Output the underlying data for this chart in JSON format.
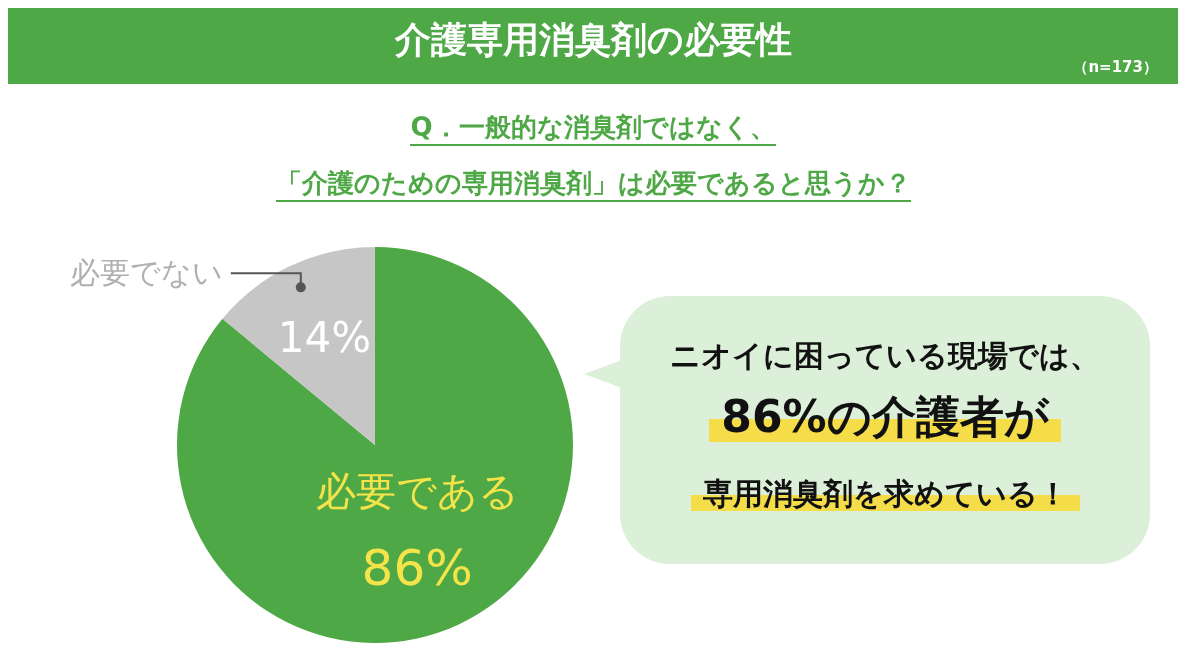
{
  "chart_data": {
    "type": "pie",
    "title": "介護専用消臭剤の必要性",
    "subtitle": "Q．一般的な消臭剤ではなく、「介護のための専用消臭剤」は必要であると思うか？",
    "categories": [
      "必要である",
      "必要でない"
    ],
    "values": [
      86,
      14
    ],
    "colors": [
      "#4ea846",
      "#c6c6c6"
    ],
    "value_labels": [
      "86%",
      "14%"
    ],
    "annotations": [
      "（n=173）",
      "ニオイに困っている現場では、",
      "86%の介護者が",
      "専用消臭剤を求めている！"
    ],
    "legend": false
  }
}
